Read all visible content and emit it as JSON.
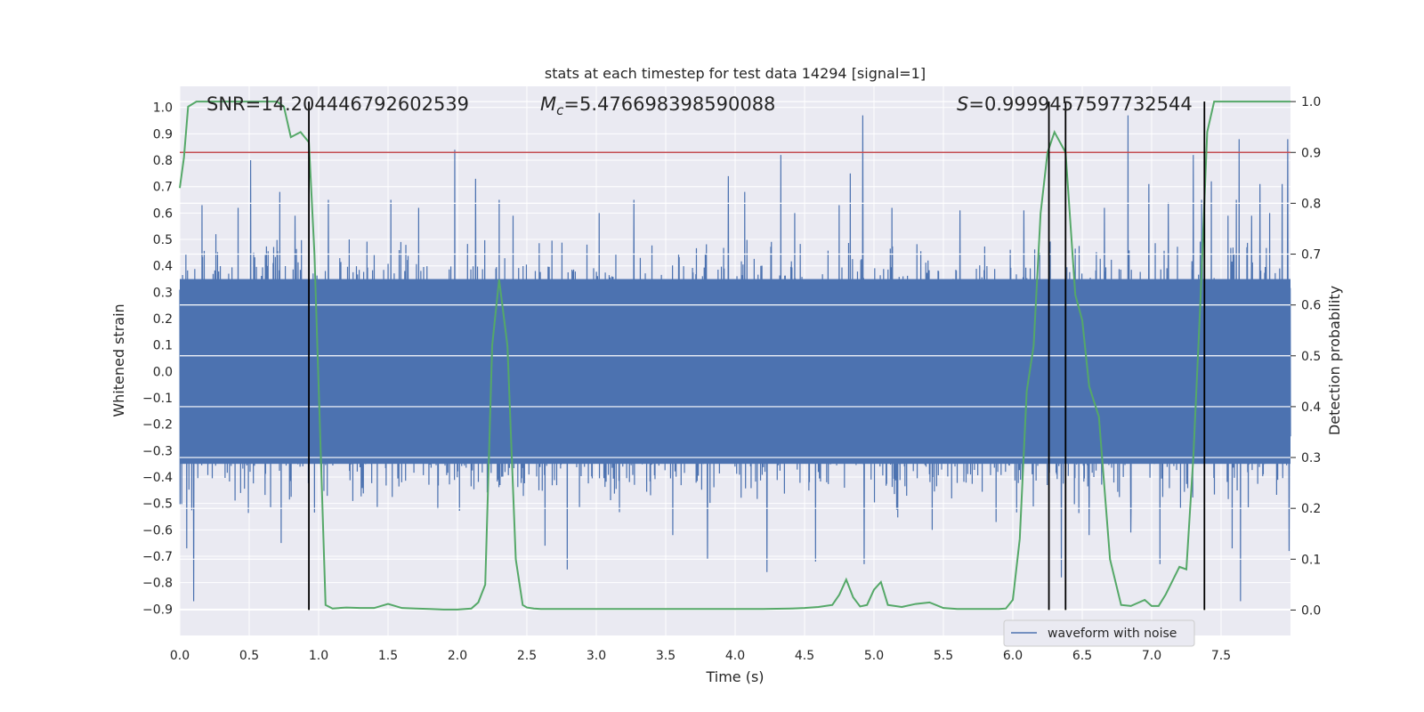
{
  "chart_data": {
    "type": "line",
    "title": "stats at each timestep for test data 14294 [signal=1]",
    "xlabel": "Time (s)",
    "ylabel_left": "Whitened strain",
    "ylabel_right": "Detection probability",
    "xlim": [
      0,
      8
    ],
    "ylim_left": [
      -1.0,
      1.08
    ],
    "ylim_right": [
      -0.05,
      1.03
    ],
    "x_ticks": [
      "0.0",
      "0.5",
      "1.0",
      "1.5",
      "2.0",
      "2.5",
      "3.0",
      "3.5",
      "4.0",
      "4.5",
      "5.0",
      "5.5",
      "6.0",
      "6.5",
      "7.0",
      "7.5"
    ],
    "y_ticks_left": [
      "-0.9",
      "-0.8",
      "-0.7",
      "-0.6",
      "-0.5",
      "-0.4",
      "-0.3",
      "-0.2",
      "-0.1",
      "0.0",
      "0.1",
      "0.2",
      "0.3",
      "0.4",
      "0.5",
      "0.6",
      "0.7",
      "0.8",
      "0.9",
      "1.0"
    ],
    "y_ticks_right": [
      "0.0",
      "0.1",
      "0.2",
      "0.3",
      "0.4",
      "0.5",
      "0.6",
      "0.7",
      "0.8",
      "0.9",
      "1.0"
    ],
    "annotations": {
      "snr_label": "SNR=14.204446792602539",
      "mc_prefix": "M",
      "mc_sub": "c",
      "mc_value": "=5.476698398590088",
      "s_prefix": "S",
      "s_value": "=0.9999457597732544"
    },
    "threshold": {
      "value": 0.9,
      "axis": "right",
      "color": "#c44e52"
    },
    "vertical_markers": [
      0.93,
      6.26,
      6.38,
      7.38
    ],
    "marker_range_right": [
      0.0,
      1.0
    ],
    "waveform_series": {
      "name": "waveform with noise",
      "color": "#4c72b0",
      "n_samples": 4000,
      "core_band": [
        -0.35,
        0.35
      ],
      "spikes": [
        {
          "x": 0.1,
          "y": -0.87
        },
        {
          "x": 0.05,
          "y": -0.67
        },
        {
          "x": 0.16,
          "y": 0.63
        },
        {
          "x": 0.26,
          "y": 0.52
        },
        {
          "x": 0.42,
          "y": 0.62
        },
        {
          "x": 0.51,
          "y": 0.8
        },
        {
          "x": 0.72,
          "y": 0.68
        },
        {
          "x": 0.73,
          "y": -0.65
        },
        {
          "x": 0.83,
          "y": 0.59
        },
        {
          "x": 1.07,
          "y": 0.65
        },
        {
          "x": 1.22,
          "y": 0.5
        },
        {
          "x": 1.52,
          "y": 0.65
        },
        {
          "x": 1.72,
          "y": 0.62
        },
        {
          "x": 1.98,
          "y": 0.84
        },
        {
          "x": 2.13,
          "y": 0.73
        },
        {
          "x": 2.3,
          "y": 0.65
        },
        {
          "x": 2.4,
          "y": 0.59
        },
        {
          "x": 2.63,
          "y": -0.66
        },
        {
          "x": 2.79,
          "y": -0.75
        },
        {
          "x": 3.02,
          "y": 0.6
        },
        {
          "x": 3.27,
          "y": 0.65
        },
        {
          "x": 3.55,
          "y": -0.62
        },
        {
          "x": 3.8,
          "y": -0.71
        },
        {
          "x": 3.95,
          "y": 0.74
        },
        {
          "x": 4.07,
          "y": 0.68
        },
        {
          "x": 4.23,
          "y": -0.76
        },
        {
          "x": 4.33,
          "y": 0.82
        },
        {
          "x": 4.43,
          "y": 0.6
        },
        {
          "x": 4.58,
          "y": -0.72
        },
        {
          "x": 4.75,
          "y": 0.63
        },
        {
          "x": 4.83,
          "y": 0.75
        },
        {
          "x": 4.92,
          "y": 0.97
        },
        {
          "x": 4.93,
          "y": -0.73
        },
        {
          "x": 5.13,
          "y": 0.62
        },
        {
          "x": 5.42,
          "y": -0.6
        },
        {
          "x": 5.62,
          "y": 0.61
        },
        {
          "x": 5.88,
          "y": -0.57
        },
        {
          "x": 6.08,
          "y": 0.61
        },
        {
          "x": 6.35,
          "y": -0.78
        },
        {
          "x": 6.55,
          "y": -0.62
        },
        {
          "x": 6.66,
          "y": 0.62
        },
        {
          "x": 6.83,
          "y": 0.97
        },
        {
          "x": 6.85,
          "y": -0.61
        },
        {
          "x": 6.98,
          "y": 0.71
        },
        {
          "x": 7.06,
          "y": -0.73
        },
        {
          "x": 7.12,
          "y": 0.64
        },
        {
          "x": 7.3,
          "y": 0.82
        },
        {
          "x": 7.36,
          "y": 0.65
        },
        {
          "x": 7.43,
          "y": 0.72
        },
        {
          "x": 7.55,
          "y": 0.59
        },
        {
          "x": 7.58,
          "y": -0.67
        },
        {
          "x": 7.61,
          "y": 0.65
        },
        {
          "x": 7.63,
          "y": 0.88
        },
        {
          "x": 7.64,
          "y": -0.87
        },
        {
          "x": 7.72,
          "y": 0.59
        },
        {
          "x": 7.78,
          "y": 0.71
        },
        {
          "x": 7.85,
          "y": 0.6
        },
        {
          "x": 7.94,
          "y": 0.71
        },
        {
          "x": 7.98,
          "y": 0.88
        },
        {
          "x": 7.99,
          "y": -0.68
        }
      ]
    },
    "probability_series": {
      "name": "detection probability",
      "color": "#55a868",
      "x": [
        0.0,
        0.03,
        0.06,
        0.12,
        0.2,
        0.3,
        0.4,
        0.5,
        0.6,
        0.7,
        0.75,
        0.8,
        0.87,
        0.93,
        0.97,
        1.05,
        1.1,
        1.2,
        1.3,
        1.4,
        1.5,
        1.6,
        1.7,
        1.8,
        1.9,
        2.0,
        2.1,
        2.15,
        2.2,
        2.25,
        2.3,
        2.36,
        2.42,
        2.47,
        2.5,
        2.55,
        2.6,
        2.7,
        2.8,
        2.9,
        3.0,
        3.2,
        3.4,
        3.6,
        3.8,
        4.0,
        4.2,
        4.4,
        4.5,
        4.6,
        4.7,
        4.75,
        4.8,
        4.85,
        4.9,
        4.95,
        5.0,
        5.05,
        5.1,
        5.2,
        5.3,
        5.4,
        5.5,
        5.6,
        5.7,
        5.8,
        5.9,
        5.95,
        6.0,
        6.05,
        6.1,
        6.15,
        6.2,
        6.25,
        6.3,
        6.38,
        6.45,
        6.5,
        6.55,
        6.62,
        6.7,
        6.78,
        6.85,
        6.95,
        7.0,
        7.05,
        7.1,
        7.2,
        7.25,
        7.3,
        7.35,
        7.4,
        7.45,
        7.5,
        7.55,
        7.6,
        7.65,
        7.7,
        7.8,
        7.9,
        8.0
      ],
      "y": [
        0.83,
        0.89,
        0.99,
        1.0,
        1.0,
        1.0,
        1.0,
        1.0,
        1.0,
        1.0,
        0.99,
        0.93,
        0.94,
        0.92,
        0.7,
        0.01,
        0.003,
        0.005,
        0.004,
        0.004,
        0.012,
        0.004,
        0.003,
        0.002,
        0.001,
        0.001,
        0.003,
        0.015,
        0.05,
        0.52,
        0.65,
        0.52,
        0.1,
        0.01,
        0.005,
        0.003,
        0.002,
        0.002,
        0.002,
        0.002,
        0.002,
        0.002,
        0.002,
        0.002,
        0.002,
        0.002,
        0.002,
        0.003,
        0.004,
        0.006,
        0.01,
        0.03,
        0.06,
        0.025,
        0.007,
        0.01,
        0.04,
        0.055,
        0.01,
        0.006,
        0.012,
        0.015,
        0.004,
        0.002,
        0.002,
        0.002,
        0.002,
        0.003,
        0.02,
        0.14,
        0.43,
        0.52,
        0.78,
        0.9,
        0.94,
        0.9,
        0.62,
        0.57,
        0.44,
        0.38,
        0.1,
        0.01,
        0.008,
        0.02,
        0.008,
        0.008,
        0.03,
        0.085,
        0.08,
        0.3,
        0.6,
        0.94,
        1.0,
        1.0,
        1.0,
        1.0,
        1.0,
        1.0,
        1.0,
        1.0,
        1.0
      ]
    },
    "legend": {
      "label": "waveform with noise",
      "placement": "lower-right"
    }
  }
}
